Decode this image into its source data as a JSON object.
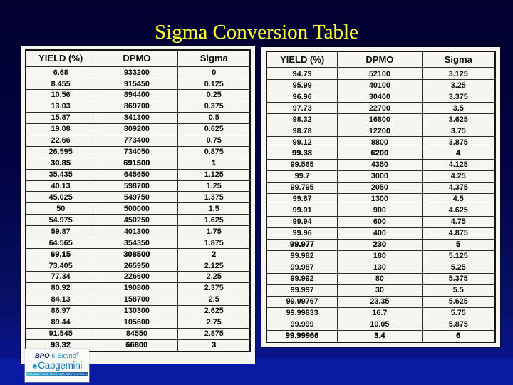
{
  "slide": {
    "title": "Sigma Conversion Table",
    "title_color": "#ffff36",
    "background_top": "#020130",
    "background_bottom": "#0a1aa2"
  },
  "left_table": {
    "headers": [
      "YIELD (%)",
      "DPMO",
      "Sigma"
    ],
    "rows": [
      [
        "6.68",
        "933200",
        "0"
      ],
      [
        "8.455",
        "915450",
        "0.125"
      ],
      [
        "10.56",
        "894400",
        "0.25"
      ],
      [
        "13.03",
        "869700",
        "0.375"
      ],
      [
        "15.87",
        "841300",
        "0.5"
      ],
      [
        "19.08",
        "809200",
        "0.625"
      ],
      [
        "22.66",
        "773400",
        "0.75"
      ],
      [
        "26.595",
        "734050",
        "0.875"
      ],
      [
        "30.85",
        "691500",
        "1"
      ],
      [
        "35.435",
        "645650",
        "1.125"
      ],
      [
        "40.13",
        "598700",
        "1.25"
      ],
      [
        "45.025",
        "549750",
        "1.375"
      ],
      [
        "50",
        "500000",
        "1.5"
      ],
      [
        "54.975",
        "450250",
        "1.625"
      ],
      [
        "59.87",
        "401300",
        "1.75"
      ],
      [
        "64.565",
        "354350",
        "1.875"
      ],
      [
        "69.15",
        "308500",
        "2"
      ],
      [
        "73.405",
        "265950",
        "2.125"
      ],
      [
        "77.34",
        "226600",
        "2.25"
      ],
      [
        "80.92",
        "190800",
        "2.375"
      ],
      [
        "84.13",
        "158700",
        "2.5"
      ],
      [
        "86.97",
        "130300",
        "2.625"
      ],
      [
        "89.44",
        "105600",
        "2.75"
      ],
      [
        "91.545",
        "84550",
        "2.875"
      ],
      [
        "93.32",
        "66800",
        "3"
      ]
    ],
    "bold_rows": [
      8,
      16,
      24
    ]
  },
  "right_table": {
    "headers": [
      "YIELD (%)",
      "DPMO",
      "Sigma"
    ],
    "rows": [
      [
        "94.79",
        "52100",
        "3.125"
      ],
      [
        "95.99",
        "40100",
        "3.25"
      ],
      [
        "96.96",
        "30400",
        "3.375"
      ],
      [
        "97.73",
        "22700",
        "3.5"
      ],
      [
        "98.32",
        "16800",
        "3.625"
      ],
      [
        "98.78",
        "12200",
        "3.75"
      ],
      [
        "99.12",
        "8800",
        "3.875"
      ],
      [
        "99.38",
        "6200",
        "4"
      ],
      [
        "99.565",
        "4350",
        "4.125"
      ],
      [
        "99.7",
        "3000",
        "4.25"
      ],
      [
        "99.795",
        "2050",
        "4.375"
      ],
      [
        "99.87",
        "1300",
        "4.5"
      ],
      [
        "99.91",
        "900",
        "4.625"
      ],
      [
        "99.94",
        "600",
        "4.75"
      ],
      [
        "99.96",
        "400",
        "4.875"
      ],
      [
        "99.977",
        "230",
        "5"
      ],
      [
        "99.982",
        "180",
        "5.125"
      ],
      [
        "99.987",
        "130",
        "5.25"
      ],
      [
        "99.992",
        "80",
        "5.375"
      ],
      [
        "99.997",
        "30",
        "5.5"
      ],
      [
        "99.99767",
        "23.35",
        "5.625"
      ],
      [
        "99.99833",
        "16.7",
        "5.75"
      ],
      [
        "99.999",
        "10.05",
        "5.875"
      ],
      [
        "99.99966",
        "3.4",
        "6"
      ]
    ],
    "bold_rows": [
      7,
      15,
      23
    ]
  },
  "logo": {
    "bpo": "BPO",
    "six_sigma": "6 Sigma",
    "sigma_sup": "σ",
    "brand": "Capgemini",
    "tagline": "Consulting Technology Outsourcing",
    "spade_icon": "spade-icon",
    "brand_color": "#1173b5",
    "teal": "#2596c8"
  }
}
